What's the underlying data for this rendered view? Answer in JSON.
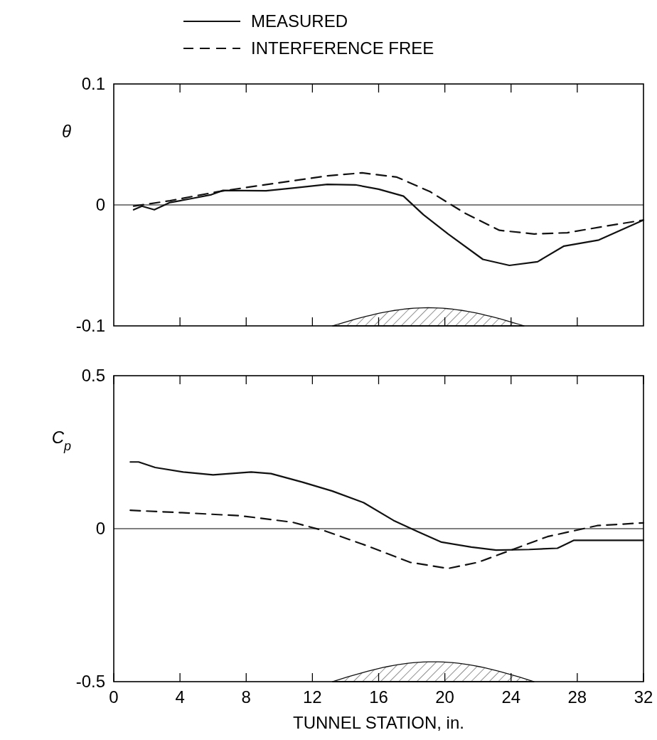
{
  "chart_data": [
    {
      "type": "line",
      "ylabel": "θ",
      "xlim": [
        0,
        32
      ],
      "xticks": [
        {
          "value": 4,
          "label": null
        },
        {
          "value": 8,
          "label": null
        },
        {
          "value": 12,
          "label": null
        },
        {
          "value": 16,
          "label": null
        },
        {
          "value": 20,
          "label": null
        },
        {
          "value": 24,
          "label": null
        },
        {
          "value": 28,
          "label": null
        }
      ],
      "ylim": [
        -0.1,
        0.1
      ],
      "yticks": [
        0.1,
        0,
        -0.1
      ],
      "tick_labels": "y",
      "legend": "top",
      "grid": false,
      "marker": "none",
      "ref_lines": [
        {
          "axis": "y",
          "value": 0,
          "color": "#000000"
        }
      ],
      "series": [
        {
          "name": "MEASURED",
          "color": "#111111",
          "line_style": "solid",
          "x": [
            1.2,
            1.7,
            2.45,
            3.4,
            4.6,
            5.9,
            6.6,
            9.2,
            10.9,
            12.9,
            14.6,
            16,
            17.5,
            18.7,
            20.2,
            22.3,
            23.9,
            25.6,
            27.2,
            29.3,
            30.6,
            32
          ],
          "values": [
            -0.004,
            -0.001,
            -0.004,
            0.002,
            0.005,
            0.0085,
            0.012,
            0.0117,
            0.014,
            0.017,
            0.0166,
            0.013,
            0.0073,
            -0.008,
            -0.024,
            -0.045,
            -0.05,
            -0.047,
            -0.034,
            -0.029,
            -0.021,
            -0.0125
          ]
        },
        {
          "name": "INTERFERENCE FREE",
          "color": "#111111",
          "line_style": "dashed",
          "x": [
            1.2,
            3.4,
            6.3,
            9.8,
            12.9,
            15,
            17.1,
            19.1,
            21.2,
            23.3,
            25.4,
            27.4,
            29.5,
            32
          ],
          "values": [
            -0.001,
            0.0035,
            0.011,
            0.018,
            0.024,
            0.0265,
            0.023,
            0.011,
            -0.0067,
            -0.021,
            -0.024,
            -0.023,
            -0.018,
            -0.0125
          ]
        }
      ]
    },
    {
      "type": "line",
      "ylabel": "C$_{p}$",
      "xlabel": "TUNNEL STATION, in.",
      "xlim": [
        0,
        32
      ],
      "xticks": [
        0,
        4,
        8,
        12,
        16,
        20,
        24,
        28,
        32
      ],
      "ylim": [
        -0.5,
        0.5
      ],
      "yticks": [
        0.5,
        0,
        -0.5
      ],
      "grid": false,
      "marker": "none",
      "ref_lines": [
        {
          "axis": "y",
          "value": 0,
          "color": "#000000"
        }
      ],
      "series": [
        {
          "color": "#111111",
          "line_style": "solid",
          "x": [
            1,
            1.5,
            2.5,
            4.2,
            6,
            8.3,
            9.5,
            11.4,
            13.2,
            15.1,
            16.9,
            18.3,
            19.8,
            21.6,
            23.1,
            25.1,
            26.8,
            27.8,
            29.2,
            32
          ],
          "values": [
            0.218,
            0.218,
            0.2,
            0.185,
            0.176,
            0.185,
            0.18,
            0.152,
            0.123,
            0.085,
            0.027,
            -0.008,
            -0.044,
            -0.06,
            -0.07,
            -0.068,
            -0.064,
            -0.038,
            -0.038,
            -0.038
          ]
        },
        {
          "color": "#111111",
          "line_style": "dashed",
          "x": [
            1,
            4.6,
            7.7,
            10.8,
            12.8,
            15.3,
            17.9,
            20.2,
            22,
            24.1,
            26.2,
            29.2,
            32
          ],
          "values": [
            0.06,
            0.051,
            0.042,
            0.021,
            -0.008,
            -0.056,
            -0.11,
            -0.13,
            -0.11,
            -0.068,
            -0.026,
            0.01,
            0.019
          ]
        }
      ]
    }
  ]
}
